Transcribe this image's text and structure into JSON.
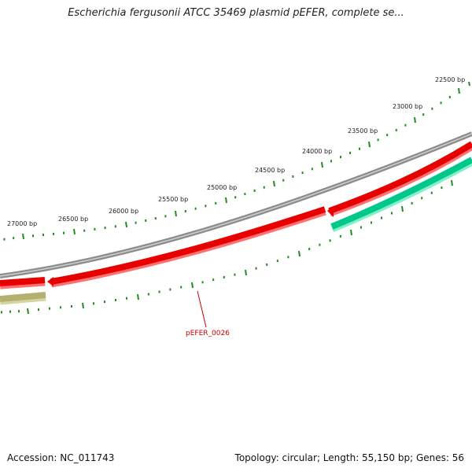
{
  "title": "Escherichia fergusonii ATCC 35469 plasmid pEFER, complete se...",
  "footer": {
    "accession": "Accession: NC_011743",
    "summary": "Topology: circular; Length: 55,150 bp; Genes: 56"
  },
  "colors": {
    "background": "#ffffff",
    "backbone": "#8c8c8c",
    "gene_forward": "#e60000",
    "gene_forward_shadow": "#ff7070",
    "gene_reverse": "#00c78a",
    "gene_reverse_shadow": "#7ff0c8",
    "gene_other": "#b5b070",
    "ruler": "#228b22",
    "label": "#cc0000"
  },
  "ruler": {
    "unit": "bp",
    "labels": [
      "22500 bp",
      "23000 bp",
      "23500 bp",
      "24000 bp",
      "24500 bp",
      "25000 bp",
      "25500 bp",
      "26000 bp",
      "26500 bp",
      "27000 bp"
    ]
  },
  "genes": [
    {
      "name": "pEFER_0026",
      "strand": "forward",
      "color_key": "gene_forward"
    },
    {
      "name": "",
      "strand": "forward",
      "color_key": "gene_forward"
    },
    {
      "name": "",
      "strand": "forward",
      "color_key": "gene_forward"
    },
    {
      "name": "",
      "strand": "reverse",
      "color_key": "gene_reverse"
    },
    {
      "name": "",
      "strand": "other",
      "color_key": "gene_other"
    }
  ],
  "gene_label": "pEFER_0026"
}
